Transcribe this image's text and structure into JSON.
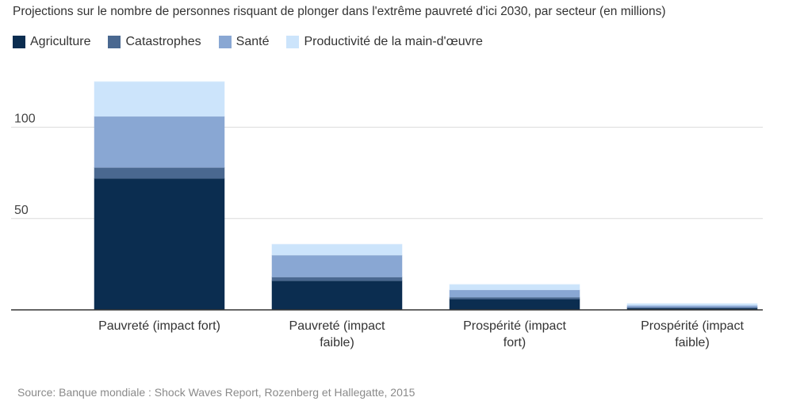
{
  "chart_data": {
    "type": "bar",
    "stacked": true,
    "title": "Projections sur le nombre de personnes risquant de plonger dans l'extrême pauvreté d'ici 2030, par secteur (en millions)",
    "source": "Source: Banque mondiale : Shock Waves Report, Rozenberg et Hallegatte, 2015",
    "categories": [
      [
        "Pauvreté (impact fort)"
      ],
      [
        "Pauvreté (impact",
        "faible)"
      ],
      [
        "Prospérité (impact",
        "fort)"
      ],
      [
        "Prospérité (impact",
        "faible)"
      ]
    ],
    "series": [
      {
        "name": "Agriculture",
        "color": "#0b2d50",
        "values": [
          72,
          16,
          6,
          1
        ]
      },
      {
        "name": "Catastrophes",
        "color": "#4a6890",
        "values": [
          6,
          2,
          1,
          0.5
        ]
      },
      {
        "name": "Santé",
        "color": "#89a7d3",
        "values": [
          28,
          12,
          4,
          1
        ]
      },
      {
        "name": "Productivité de la main-d'œuvre",
        "color": "#cce4fb",
        "values": [
          19,
          6,
          3,
          1
        ]
      }
    ],
    "yticks": [
      50,
      100
    ],
    "ylim": [
      0,
      125
    ],
    "grid": true,
    "legend": "top-left"
  }
}
